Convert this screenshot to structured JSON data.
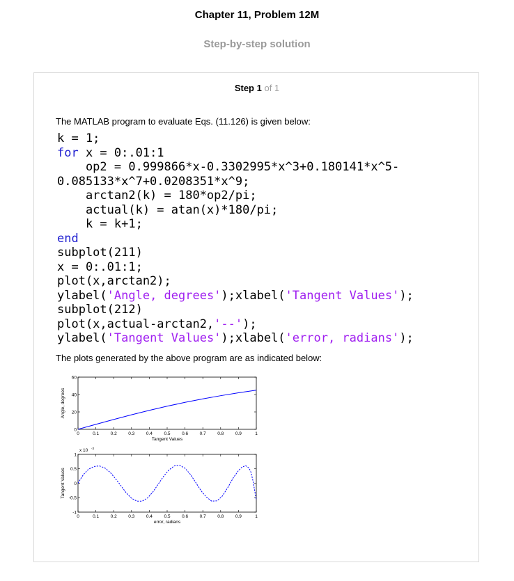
{
  "header": {
    "title": "Chapter 11, Problem 12M",
    "subtitle": "Step-by-step solution"
  },
  "step": {
    "label": "Step 1",
    "of": "of 1"
  },
  "intro_text": "The MATLAB program to evaluate Eqs. (11.126) is given below:",
  "code": {
    "l1": "k = 1;",
    "l2_kw": "for",
    "l2": " x = 0:.01:1",
    "l3": "    op2 = 0.999866*x-0.3302995*x^3+0.180141*x^5-",
    "l4": "0.085133*x^7+0.0208351*x^9;",
    "l5": "    arctan2(k) = 180*op2/pi;",
    "l6": "    actual(k) = atan(x)*180/pi;",
    "l7": "    k = k+1;",
    "l8_kw": "end",
    "l9": "subplot(211)",
    "l10": "x = 0:.01:1;",
    "l11": "plot(x,arctan2);",
    "l12_a": "ylabel(",
    "l12_s1": "'Angle, degrees'",
    "l12_b": ");xlabel(",
    "l12_s2": "'Tangent Values'",
    "l12_c": ");",
    "l13": "subplot(212)",
    "l14_a": "plot(x,actual-arctan2,",
    "l14_s": "'--'",
    "l14_b": ");",
    "l15_a": "ylabel(",
    "l15_s1": "'Tangent Values'",
    "l15_b": ");xlabel(",
    "l15_s2": "'error, radians'",
    "l15_c": ");"
  },
  "outro_text": "The plots generated by the above program are as indicated below:",
  "chart_data": [
    {
      "type": "line",
      "xlabel": "Tangent Values",
      "ylabel": "Angle, degrees",
      "xlim": [
        0,
        1
      ],
      "ylim": [
        0,
        60
      ],
      "xticks": [
        "0",
        "0.1",
        "0.2",
        "0.3",
        "0.4",
        "0.5",
        "0.6",
        "0.7",
        "0.8",
        "0.9",
        "1"
      ],
      "yticks": [
        "0",
        "20",
        "40",
        "60"
      ],
      "color": "#0000ff",
      "series": [
        {
          "x": [
            0,
            0.1,
            0.2,
            0.3,
            0.4,
            0.5,
            0.6,
            0.7,
            0.8,
            0.9,
            1.0
          ],
          "y": [
            0,
            5.71,
            11.31,
            16.7,
            21.8,
            26.57,
            30.96,
            34.99,
            38.66,
            41.99,
            45.0
          ]
        }
      ]
    },
    {
      "type": "line",
      "xlabel": "error, radians",
      "ylabel": "Tangent Values",
      "scale_label": "x 10",
      "scale_exp": "-3",
      "xlim": [
        0,
        1
      ],
      "ylim": [
        -1,
        1
      ],
      "xticks": [
        "0",
        "0.1",
        "0.2",
        "0.3",
        "0.4",
        "0.5",
        "0.6",
        "0.7",
        "0.8",
        "0.9",
        "1"
      ],
      "yticks": [
        "-1",
        "-0.5",
        "0",
        "0.5",
        "1"
      ],
      "color": "#0000ff",
      "series": [
        {
          "x": [
            0,
            0.03,
            0.06,
            0.09,
            0.12,
            0.15,
            0.18,
            0.21,
            0.24,
            0.27,
            0.3,
            0.33,
            0.36,
            0.39,
            0.42,
            0.45,
            0.48,
            0.51,
            0.54,
            0.57,
            0.6,
            0.63,
            0.66,
            0.69,
            0.72,
            0.75,
            0.78,
            0.81,
            0.84,
            0.87,
            0.9,
            0.92,
            0.94,
            0.96,
            0.97,
            0.98,
            0.99,
            1.0
          ],
          "y": [
            0,
            0.3,
            0.49,
            0.58,
            0.6,
            0.53,
            0.38,
            0.16,
            -0.08,
            -0.33,
            -0.52,
            -0.62,
            -0.62,
            -0.51,
            -0.3,
            -0.03,
            0.24,
            0.46,
            0.6,
            0.62,
            0.52,
            0.31,
            0.03,
            -0.26,
            -0.48,
            -0.62,
            -0.61,
            -0.44,
            -0.15,
            0.18,
            0.44,
            0.56,
            0.61,
            0.52,
            0.38,
            0.12,
            -0.22,
            -0.58
          ]
        }
      ]
    }
  ]
}
